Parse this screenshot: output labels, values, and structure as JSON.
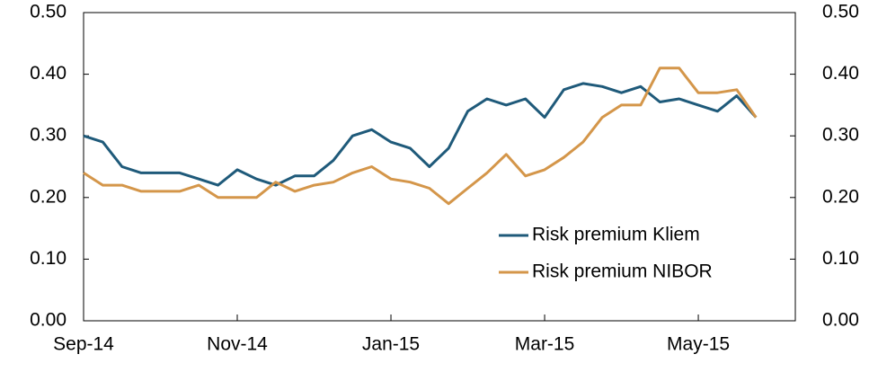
{
  "chart_data": {
    "type": "line",
    "categories": [
      "Sep-14",
      null,
      null,
      null,
      null,
      null,
      null,
      null,
      "Nov-14",
      null,
      null,
      null,
      null,
      null,
      null,
      null,
      "Jan-15",
      null,
      null,
      null,
      null,
      null,
      null,
      null,
      "Mar-15",
      null,
      null,
      null,
      null,
      null,
      null,
      null,
      "May-15",
      null,
      null,
      null
    ],
    "series": [
      {
        "name": "Risk premium Kliem",
        "color": "#1f5a7a",
        "values": [
          0.3,
          0.29,
          0.25,
          0.24,
          0.24,
          0.24,
          0.23,
          0.22,
          0.245,
          0.23,
          0.22,
          0.235,
          0.235,
          0.26,
          0.3,
          0.31,
          0.29,
          0.28,
          0.25,
          0.28,
          0.34,
          0.36,
          0.35,
          0.36,
          0.33,
          0.375,
          0.385,
          0.38,
          0.37,
          0.38,
          0.355,
          0.36,
          0.35,
          0.34,
          0.365,
          0.33
        ]
      },
      {
        "name": "Risk premium NIBOR",
        "color": "#d4964a",
        "values": [
          0.24,
          0.22,
          0.22,
          0.21,
          0.21,
          0.21,
          0.22,
          0.2,
          0.2,
          0.2,
          0.225,
          0.21,
          0.22,
          0.225,
          0.24,
          0.25,
          0.23,
          0.225,
          0.215,
          0.19,
          0.215,
          0.24,
          0.27,
          0.235,
          0.245,
          0.265,
          0.29,
          0.33,
          0.35,
          0.35,
          0.41,
          0.41,
          0.37,
          0.37,
          0.375,
          0.33
        ]
      }
    ],
    "ylim": [
      0,
      0.5
    ],
    "yticks": [
      {
        "value": 0,
        "label": "0.00"
      },
      {
        "value": 0.1,
        "label": "0.10"
      },
      {
        "value": 0.2,
        "label": "0.20"
      },
      {
        "value": 0.3,
        "label": "0.30"
      },
      {
        "value": 0.4,
        "label": "0.40"
      },
      {
        "value": 0.5,
        "label": "0.50"
      }
    ],
    "y2lim": [
      0,
      0.5
    ],
    "y2ticks": [
      {
        "value": 0,
        "label": "0.00"
      },
      {
        "value": 0.1,
        "label": "0.10"
      },
      {
        "value": 0.2,
        "label": "0.20"
      },
      {
        "value": 0.3,
        "label": "0.30"
      },
      {
        "value": 0.4,
        "label": "0.40"
      },
      {
        "value": 0.5,
        "label": "0.50"
      }
    ],
    "grid": false
  }
}
